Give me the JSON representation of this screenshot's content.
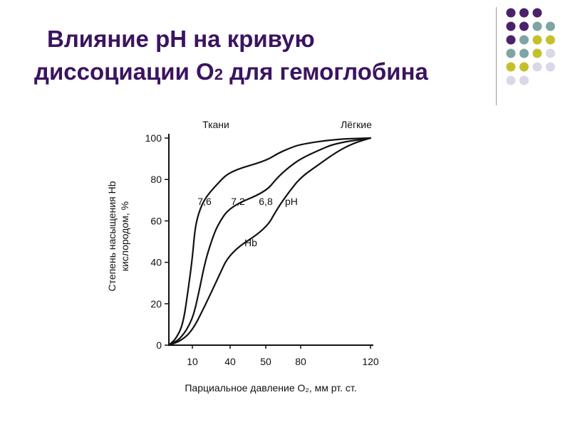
{
  "slide": {
    "title_line1": "Влияние pH на кривую",
    "title_line2_a": "диссоциации O",
    "title_line2_sub": "2",
    "title_line2_b": " для гемоглобина"
  },
  "decor": {
    "dot_colors": {
      "purple": "#4b2169",
      "teal": "#7fa4a4",
      "olive": "#c3c12b",
      "lavender": "#d9d7e8"
    },
    "dot_rows": [
      [
        "purple",
        "purple",
        "purple"
      ],
      [
        "purple",
        "purple",
        "teal",
        "teal"
      ],
      [
        "purple",
        "teal",
        "olive",
        "olive"
      ],
      [
        "teal",
        "teal",
        "olive",
        "lavender"
      ],
      [
        "olive",
        "olive",
        "lavender",
        "lavender"
      ],
      [
        "lavender",
        "lavender"
      ]
    ]
  },
  "chart_data": {
    "type": "line",
    "xlabel": "Парциальное давление O₂, мм рт. ст.",
    "ylabel_line1": "Степень насыщения Hb",
    "ylabel_line2": "кислородом, %",
    "x_ticks": [
      10,
      40,
      50,
      80,
      120
    ],
    "y_ticks": [
      0,
      20,
      40,
      60,
      80,
      100
    ],
    "ylim": [
      0,
      100
    ],
    "grid": false,
    "annotations": {
      "tissues": "Ткани",
      "lungs": "Лёгкие",
      "ph_label": "pH",
      "hb_label": "Hb"
    },
    "series": [
      {
        "label": "7,6",
        "points": [
          [
            0,
            0
          ],
          [
            3,
            3
          ],
          [
            6,
            10
          ],
          [
            8,
            25
          ],
          [
            10,
            42
          ],
          [
            12,
            56
          ],
          [
            15,
            64
          ],
          [
            20,
            71
          ],
          [
            30,
            78
          ],
          [
            40,
            84
          ],
          [
            50,
            89
          ],
          [
            60,
            92.5
          ],
          [
            70,
            95
          ],
          [
            80,
            97
          ],
          [
            100,
            99.5
          ],
          [
            120,
            100
          ]
        ]
      },
      {
        "label": "7,2",
        "points": [
          [
            0,
            0
          ],
          [
            5,
            3
          ],
          [
            10,
            12
          ],
          [
            15,
            25
          ],
          [
            20,
            40
          ],
          [
            25,
            50
          ],
          [
            30,
            58
          ],
          [
            40,
            67
          ],
          [
            50,
            74
          ],
          [
            60,
            81
          ],
          [
            70,
            86
          ],
          [
            80,
            90
          ],
          [
            90,
            94
          ],
          [
            100,
            97.5
          ],
          [
            120,
            100
          ]
        ]
      },
      {
        "label": "6,8",
        "points": [
          [
            0,
            0
          ],
          [
            5,
            2
          ],
          [
            10,
            7
          ],
          [
            20,
            19
          ],
          [
            30,
            32
          ],
          [
            40,
            45
          ],
          [
            50,
            56
          ],
          [
            60,
            66
          ],
          [
            70,
            74
          ],
          [
            80,
            81
          ],
          [
            90,
            87
          ],
          [
            100,
            93
          ],
          [
            110,
            97.5
          ],
          [
            120,
            100
          ]
        ]
      }
    ]
  }
}
